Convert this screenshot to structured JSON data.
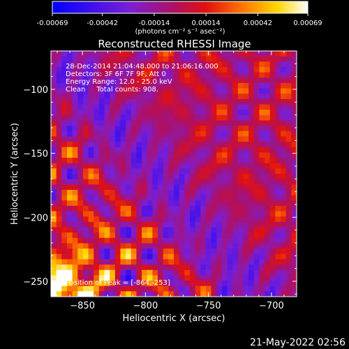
{
  "chart_data": {
    "type": "heatmap",
    "title": "Reconstructed RHESSI Image",
    "xlabel": "Heliocentric X (arcsec)",
    "ylabel": "Heliocentric Y (arcsec)",
    "xlim": [
      -875,
      -680
    ],
    "ylim": [
      -262,
      -70
    ],
    "x_ticks": [
      -850,
      -800,
      -750,
      -700
    ],
    "y_ticks": [
      -100,
      -150,
      -200,
      -250
    ],
    "colorbar": {
      "unit_label": "(photons cm⁻² s⁻¹ asec⁻²)",
      "range": [
        -0.00069,
        0.00069
      ],
      "ticks": [
        "-0.00069",
        "-0.00042",
        "-0.00014",
        "0.00014",
        "0.00042",
        "0.00069"
      ],
      "colormap": [
        "#0000ff",
        "#7a1fd6",
        "#b01060",
        "#e01010",
        "#ff7a00",
        "#ffd700",
        "#ffffff"
      ]
    },
    "annotations": [
      "28-Dec-2014 21:04:48.000 to 21:06:16.000",
      "Detectors: 3F 6F 7F 9F, Att 0",
      "Energy Range: 12.0 - 25.0 keV",
      "Clean     Total counts: 908.",
      "Position of Peak = [-864,-253]"
    ],
    "grid": false
  },
  "footer": {
    "timestamp": "21-May-2022 02:56"
  }
}
